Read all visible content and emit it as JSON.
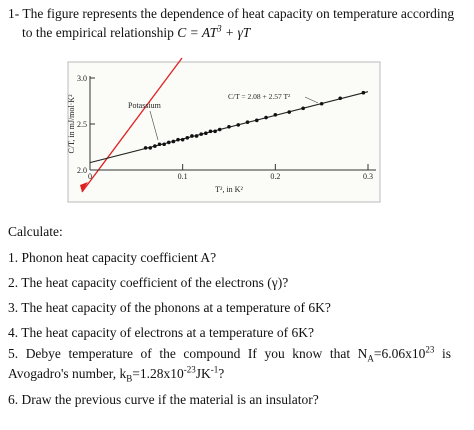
{
  "question": {
    "line1": "1- The figure represents the dependence of heat capacity on temperature according",
    "line2": "to the empirical relationship",
    "formula": {
      "base": "C = AT",
      "exp": "3",
      "tail": " + γT"
    }
  },
  "figure": {
    "y_label": "C/T, in mJ/mol·K²",
    "x_label": "T², in K²",
    "sample_label": "Potassium",
    "fit_label": "C/T = 2.08 + 2.57 T²",
    "xlim": [
      0,
      0.3
    ],
    "ylim": [
      2.0,
      3.0
    ],
    "xticks": [
      0,
      0.1,
      0.2,
      0.3
    ],
    "yticks": [
      {
        "value": 2.0,
        "label": "2.0"
      },
      {
        "value": 2.5,
        "label": "2.5"
      },
      {
        "value": 3.0,
        "label": "3.0"
      }
    ],
    "points_x": [
      0.06,
      0.065,
      0.07,
      0.075,
      0.08,
      0.085,
      0.09,
      0.095,
      0.1,
      0.105,
      0.11,
      0.115,
      0.12,
      0.125,
      0.13,
      0.135,
      0.14,
      0.15,
      0.16,
      0.17,
      0.18,
      0.19,
      0.2,
      0.215,
      0.23,
      0.25,
      0.27,
      0.295
    ],
    "points_y": [
      2.24,
      2.24,
      2.26,
      2.28,
      2.28,
      2.3,
      2.31,
      2.33,
      2.33,
      2.35,
      2.37,
      2.37,
      2.39,
      2.4,
      2.42,
      2.42,
      2.44,
      2.47,
      2.49,
      2.52,
      2.54,
      2.57,
      2.6,
      2.63,
      2.67,
      2.72,
      2.78,
      2.84
    ],
    "fit_x": [
      0,
      0.3
    ],
    "fit_y": [
      2.08,
      2.851
    ]
  },
  "calculate": "Calculate:",
  "items": [
    "1. Phonon heat capacity coefficient A?",
    "2. The heat capacity coefficient of the electrons (γ)?",
    "3. The heat capacity of the phonons at a temperature of 6K?",
    "4. The heat capacity of electrons at a temperature of 6K?"
  ],
  "item5": {
    "line1": [
      {
        "text": "5. Debye temperature of the compound If you know that N",
        "style": "normal"
      },
      {
        "text": "A",
        "style": "sub"
      },
      {
        "text": "=6.06x10",
        "style": "normal"
      },
      {
        "text": "23",
        "style": "sup"
      },
      {
        "text": " is",
        "style": "normal"
      }
    ],
    "line2": [
      {
        "text": "Avogadro's number, k",
        "style": "normal"
      },
      {
        "text": "B",
        "style": "sub"
      },
      {
        "text": "=1.28x10",
        "style": "normal"
      },
      {
        "text": "-23",
        "style": "sup"
      },
      {
        "text": "JK",
        "style": "normal"
      },
      {
        "text": "-1",
        "style": "sup"
      },
      {
        "text": "?",
        "style": "normal"
      }
    ]
  },
  "item6": "6. Draw the previous curve if the material is an insulator?"
}
